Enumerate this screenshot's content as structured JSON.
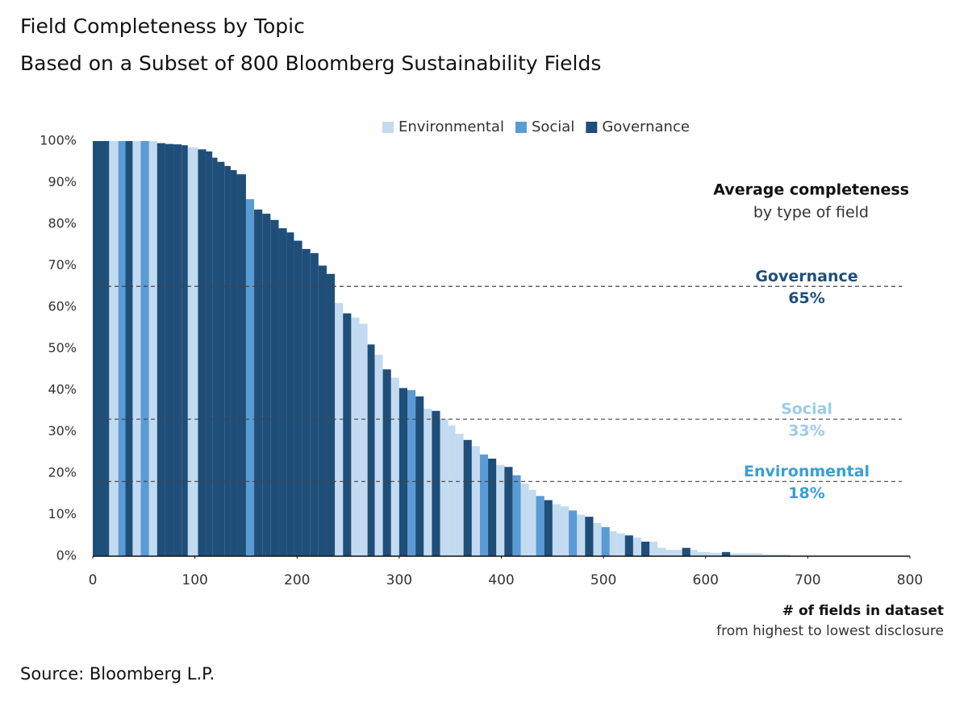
{
  "chart_data": {
    "type": "bar",
    "title": "Field Completeness by Topic",
    "subtitle": "Based on a Subset of 800 Bloomberg  Sustainability Fields",
    "annotation_title": "Average completeness",
    "annotation_subtitle": "by type of field",
    "x_label": "# of fields in dataset",
    "x_sublabel": "from highest to lowest disclosure",
    "source": "Source: Bloomberg L.P.",
    "xlim": [
      0,
      800
    ],
    "xticks": [
      0,
      100,
      200,
      300,
      400,
      500,
      600,
      700,
      800
    ],
    "ylim": [
      0,
      100
    ],
    "yticks": [
      {
        "value": 0,
        "label": "0%"
      },
      {
        "value": 10,
        "label": "10%"
      },
      {
        "value": 20,
        "label": "20%"
      },
      {
        "value": 30,
        "label": "30%"
      },
      {
        "value": 40,
        "label": "40%"
      },
      {
        "value": 50,
        "label": "50%"
      },
      {
        "value": 60,
        "label": "60%"
      },
      {
        "value": 70,
        "label": "70%"
      },
      {
        "value": 80,
        "label": "80%"
      },
      {
        "value": 90,
        "label": "90%"
      },
      {
        "value": 100,
        "label": "100%"
      }
    ],
    "series": [
      {
        "name": "Environmental",
        "color": "#c3dbf0",
        "x_ranges": [
          [
            16,
            25
          ],
          [
            39,
            47
          ],
          [
            55,
            63
          ],
          [
            93,
            103
          ],
          [
            237,
            245
          ],
          [
            253,
            261
          ],
          [
            261,
            269
          ],
          [
            276,
            284
          ],
          [
            292,
            300
          ],
          [
            324,
            332
          ],
          [
            340,
            348
          ],
          [
            348,
            355
          ],
          [
            355,
            363
          ],
          [
            371,
            379
          ],
          [
            395,
            403
          ],
          [
            419,
            427
          ],
          [
            427,
            434
          ],
          [
            450,
            458
          ],
          [
            458,
            466
          ],
          [
            474,
            482
          ],
          [
            490,
            498
          ],
          [
            506,
            513
          ],
          [
            513,
            521
          ],
          [
            529,
            537
          ],
          [
            545,
            553
          ],
          [
            553,
            561
          ],
          [
            561,
            577
          ],
          [
            585,
            592
          ],
          [
            592,
            604
          ],
          [
            604,
            616
          ],
          [
            624,
            656
          ],
          [
            656,
            683
          ]
        ],
        "values": [
          100,
          100,
          100,
          98.5,
          61,
          57.5,
          56,
          48.5,
          43,
          35.5,
          33,
          31.5,
          29.5,
          26.5,
          22,
          17.5,
          16,
          12.5,
          12,
          10,
          8,
          6,
          5.5,
          4.5,
          3.5,
          2,
          1.5,
          1.5,
          1,
          0.8,
          0.7,
          0.4
        ]
      },
      {
        "name": "Social",
        "color": "#5b9bd5",
        "x_ranges": [
          [
            25,
            32
          ],
          [
            47,
            55
          ],
          [
            150,
            158
          ],
          [
            308,
            316
          ],
          [
            379,
            387
          ],
          [
            411,
            419
          ],
          [
            434,
            442
          ],
          [
            466,
            474
          ],
          [
            498,
            506
          ]
        ],
        "values": [
          100,
          100,
          86,
          40,
          24.5,
          19.5,
          14.5,
          11,
          7
        ]
      },
      {
        "name": "Governance",
        "color": "#1f4e79",
        "x_ranges": [
          [
            0,
            16
          ],
          [
            32,
            39
          ],
          [
            63,
            71
          ],
          [
            71,
            79
          ],
          [
            79,
            87
          ],
          [
            87,
            93
          ],
          [
            103,
            111
          ],
          [
            111,
            117
          ],
          [
            117,
            122
          ],
          [
            122,
            129
          ],
          [
            129,
            135
          ],
          [
            135,
            141
          ],
          [
            141,
            150
          ],
          [
            158,
            166
          ],
          [
            166,
            174
          ],
          [
            174,
            182
          ],
          [
            182,
            190
          ],
          [
            190,
            197
          ],
          [
            197,
            205
          ],
          [
            205,
            213
          ],
          [
            213,
            221
          ],
          [
            221,
            229
          ],
          [
            229,
            237
          ],
          [
            245,
            253
          ],
          [
            269,
            276
          ],
          [
            284,
            292
          ],
          [
            300,
            308
          ],
          [
            316,
            324
          ],
          [
            332,
            340
          ],
          [
            363,
            371
          ],
          [
            387,
            395
          ],
          [
            403,
            411
          ],
          [
            442,
            450
          ],
          [
            482,
            490
          ],
          [
            521,
            529
          ],
          [
            537,
            545
          ],
          [
            577,
            585
          ],
          [
            616,
            624
          ]
        ],
        "values": [
          100,
          100,
          99.5,
          99.3,
          99.2,
          99,
          98,
          97.5,
          96,
          95,
          94,
          93,
          92,
          83.5,
          82.5,
          81,
          79,
          78,
          76,
          74,
          73,
          70,
          68,
          58.5,
          51,
          45,
          40.5,
          38.5,
          35,
          28,
          23.5,
          21.5,
          13.5,
          9.5,
          5,
          3.5,
          2,
          1
        ]
      }
    ],
    "average_lines": [
      {
        "name": "Governance",
        "value": 65,
        "label": "65%",
        "color": "#1f4e79"
      },
      {
        "name": "Social",
        "value": 33,
        "label": "33%",
        "color": "#9ccbe8"
      },
      {
        "name": "Environmental",
        "value": 18,
        "label": "18%",
        "color": "#3a9fd0"
      }
    ]
  }
}
